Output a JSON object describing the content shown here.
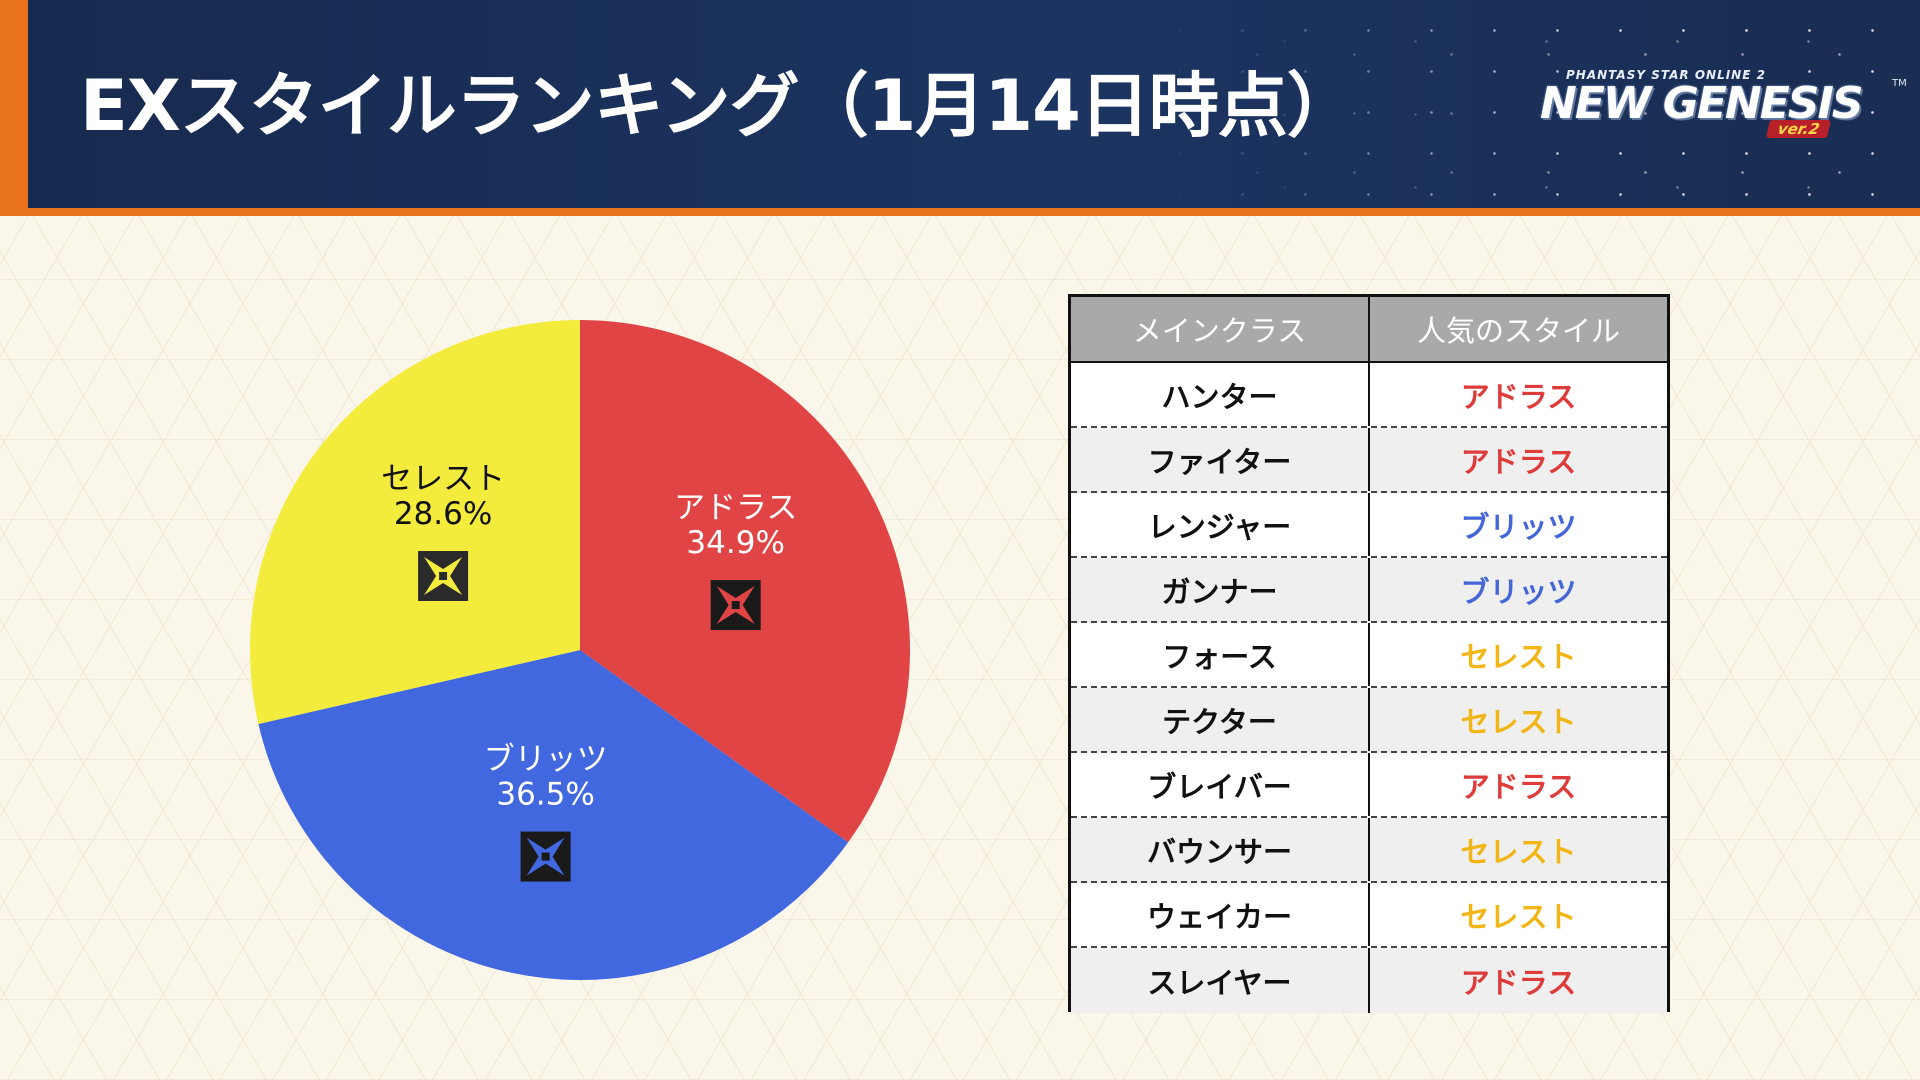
{
  "header": {
    "title": "EXスタイルランキング（1月14日時点）",
    "logo": {
      "subtitle": "PHANTASY STAR ONLINE 2",
      "name": "NEW GENESIS",
      "trademark": "TM",
      "version": "ver.2"
    }
  },
  "colors": {
    "accent": "#e9731c",
    "header_bg": "#1b3461",
    "adras": "#e04444",
    "blitz": "#4168df",
    "celest": "#f4ec3c"
  },
  "chart_data": {
    "type": "pie",
    "slices": [
      {
        "label": "アドラス",
        "value": 34.9,
        "value_label": "34.9%",
        "color": "#e04444",
        "icon": "adras-style-icon"
      },
      {
        "label": "ブリッツ",
        "value": 36.5,
        "value_label": "36.5%",
        "color": "#4168df",
        "icon": "blitz-style-icon"
      },
      {
        "label": "セレスト",
        "value": 28.6,
        "value_label": "28.6%",
        "color": "#f4ec3c",
        "icon": "celest-style-icon"
      }
    ],
    "start_angle": "12 o'clock",
    "direction": "clockwise"
  },
  "table": {
    "headers": [
      "メインクラス",
      "人気のスタイル"
    ],
    "rows": [
      {
        "class": "ハンター",
        "style": "アドラス",
        "color": "red"
      },
      {
        "class": "ファイター",
        "style": "アドラス",
        "color": "red"
      },
      {
        "class": "レンジャー",
        "style": "ブリッツ",
        "color": "blue"
      },
      {
        "class": "ガンナー",
        "style": "ブリッツ",
        "color": "blue"
      },
      {
        "class": "フォース",
        "style": "セレスト",
        "color": "yellow"
      },
      {
        "class": "テクター",
        "style": "セレスト",
        "color": "yellow"
      },
      {
        "class": "ブレイバー",
        "style": "アドラス",
        "color": "red"
      },
      {
        "class": "バウンサー",
        "style": "セレスト",
        "color": "yellow"
      },
      {
        "class": "ウェイカー",
        "style": "セレスト",
        "color": "yellow"
      },
      {
        "class": "スレイヤー",
        "style": "アドラス",
        "color": "red"
      }
    ]
  }
}
